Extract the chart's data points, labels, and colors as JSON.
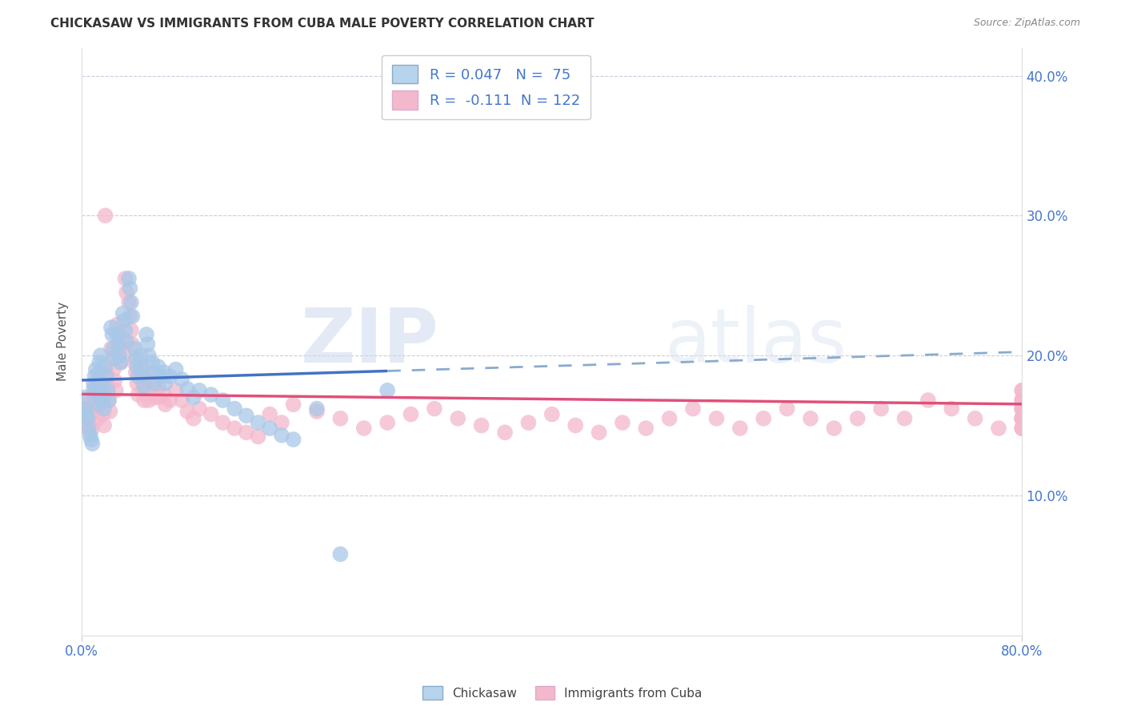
{
  "title": "CHICKASAW VS IMMIGRANTS FROM CUBA MALE POVERTY CORRELATION CHART",
  "source": "Source: ZipAtlas.com",
  "ylabel": "Male Poverty",
  "x_min": 0.0,
  "x_max": 0.8,
  "y_min": 0.0,
  "y_max": 0.42,
  "y_ticks": [
    0.1,
    0.2,
    0.3,
    0.4
  ],
  "y_tick_labels": [
    "10.0%",
    "20.0%",
    "30.0%",
    "40.0%"
  ],
  "chickasaw_R": 0.047,
  "chickasaw_N": 75,
  "cuba_R": -0.111,
  "cuba_N": 122,
  "blue_dot_color": "#a8c8e8",
  "blue_line_color": "#4472c4",
  "blue_dash_color": "#8aabcf",
  "pink_dot_color": "#f4b8cc",
  "pink_line_color": "#e0507a",
  "legend_blue_fill": "#b8d4ec",
  "legend_pink_fill": "#f4b8cc",
  "chickasaw_x": [
    0.002,
    0.003,
    0.004,
    0.005,
    0.006,
    0.007,
    0.008,
    0.009,
    0.01,
    0.01,
    0.011,
    0.012,
    0.013,
    0.014,
    0.015,
    0.015,
    0.016,
    0.017,
    0.018,
    0.019,
    0.02,
    0.021,
    0.022,
    0.023,
    0.025,
    0.026,
    0.027,
    0.028,
    0.03,
    0.031,
    0.032,
    0.033,
    0.035,
    0.036,
    0.037,
    0.038,
    0.04,
    0.041,
    0.042,
    0.043,
    0.045,
    0.046,
    0.047,
    0.048,
    0.05,
    0.051,
    0.052,
    0.053,
    0.055,
    0.056,
    0.057,
    0.06,
    0.061,
    0.062,
    0.065,
    0.066,
    0.07,
    0.071,
    0.075,
    0.08,
    0.085,
    0.09,
    0.095,
    0.1,
    0.11,
    0.12,
    0.13,
    0.14,
    0.15,
    0.16,
    0.17,
    0.18,
    0.2,
    0.22,
    0.26
  ],
  "chickasaw_y": [
    0.17,
    0.162,
    0.158,
    0.155,
    0.148,
    0.143,
    0.14,
    0.137,
    0.175,
    0.18,
    0.185,
    0.19,
    0.172,
    0.165,
    0.195,
    0.188,
    0.2,
    0.178,
    0.168,
    0.162,
    0.192,
    0.185,
    0.175,
    0.168,
    0.22,
    0.215,
    0.205,
    0.198,
    0.215,
    0.208,
    0.2,
    0.195,
    0.23,
    0.225,
    0.218,
    0.21,
    0.255,
    0.248,
    0.238,
    0.228,
    0.205,
    0.198,
    0.192,
    0.185,
    0.2,
    0.193,
    0.186,
    0.178,
    0.215,
    0.208,
    0.2,
    0.195,
    0.188,
    0.18,
    0.192,
    0.185,
    0.188,
    0.18,
    0.185,
    0.19,
    0.183,
    0.176,
    0.17,
    0.175,
    0.172,
    0.168,
    0.162,
    0.157,
    0.152,
    0.148,
    0.143,
    0.14,
    0.162,
    0.058,
    0.175
  ],
  "cuba_x": [
    0.002,
    0.003,
    0.004,
    0.005,
    0.006,
    0.007,
    0.008,
    0.009,
    0.01,
    0.011,
    0.012,
    0.013,
    0.014,
    0.015,
    0.016,
    0.017,
    0.018,
    0.019,
    0.02,
    0.021,
    0.022,
    0.023,
    0.024,
    0.025,
    0.026,
    0.027,
    0.028,
    0.029,
    0.03,
    0.031,
    0.032,
    0.033,
    0.035,
    0.036,
    0.037,
    0.038,
    0.04,
    0.041,
    0.042,
    0.043,
    0.045,
    0.046,
    0.047,
    0.048,
    0.05,
    0.051,
    0.052,
    0.053,
    0.055,
    0.056,
    0.057,
    0.06,
    0.061,
    0.062,
    0.065,
    0.066,
    0.07,
    0.071,
    0.075,
    0.08,
    0.085,
    0.09,
    0.095,
    0.1,
    0.11,
    0.12,
    0.13,
    0.14,
    0.15,
    0.16,
    0.17,
    0.18,
    0.2,
    0.22,
    0.24,
    0.26,
    0.28,
    0.3,
    0.32,
    0.34,
    0.36,
    0.38,
    0.4,
    0.42,
    0.44,
    0.46,
    0.48,
    0.5,
    0.52,
    0.54,
    0.56,
    0.58,
    0.6,
    0.62,
    0.64,
    0.66,
    0.68,
    0.7,
    0.72,
    0.74,
    0.76,
    0.78,
    0.8,
    0.8,
    0.8,
    0.8,
    0.8,
    0.8,
    0.8,
    0.8,
    0.8,
    0.8,
    0.8,
    0.8,
    0.8,
    0.8,
    0.8,
    0.8,
    0.8,
    0.8,
    0.8,
    0.8
  ],
  "cuba_y": [
    0.165,
    0.158,
    0.152,
    0.148,
    0.155,
    0.162,
    0.158,
    0.148,
    0.172,
    0.178,
    0.168,
    0.162,
    0.155,
    0.182,
    0.175,
    0.165,
    0.158,
    0.15,
    0.3,
    0.188,
    0.178,
    0.168,
    0.16,
    0.205,
    0.198,
    0.19,
    0.182,
    0.175,
    0.222,
    0.215,
    0.205,
    0.195,
    0.21,
    0.202,
    0.255,
    0.245,
    0.238,
    0.228,
    0.218,
    0.208,
    0.195,
    0.188,
    0.18,
    0.172,
    0.19,
    0.182,
    0.175,
    0.168,
    0.182,
    0.175,
    0.168,
    0.185,
    0.178,
    0.17,
    0.178,
    0.17,
    0.172,
    0.165,
    0.168,
    0.175,
    0.168,
    0.16,
    0.155,
    0.162,
    0.158,
    0.152,
    0.148,
    0.145,
    0.142,
    0.158,
    0.152,
    0.165,
    0.16,
    0.155,
    0.148,
    0.152,
    0.158,
    0.162,
    0.155,
    0.15,
    0.145,
    0.152,
    0.158,
    0.15,
    0.145,
    0.152,
    0.148,
    0.155,
    0.162,
    0.155,
    0.148,
    0.155,
    0.162,
    0.155,
    0.148,
    0.155,
    0.162,
    0.155,
    0.168,
    0.162,
    0.155,
    0.148,
    0.155,
    0.162,
    0.175,
    0.168,
    0.155,
    0.148,
    0.155,
    0.162,
    0.168,
    0.175,
    0.162,
    0.155,
    0.148,
    0.162,
    0.155,
    0.148,
    0.155,
    0.162,
    0.168,
    0.155
  ]
}
